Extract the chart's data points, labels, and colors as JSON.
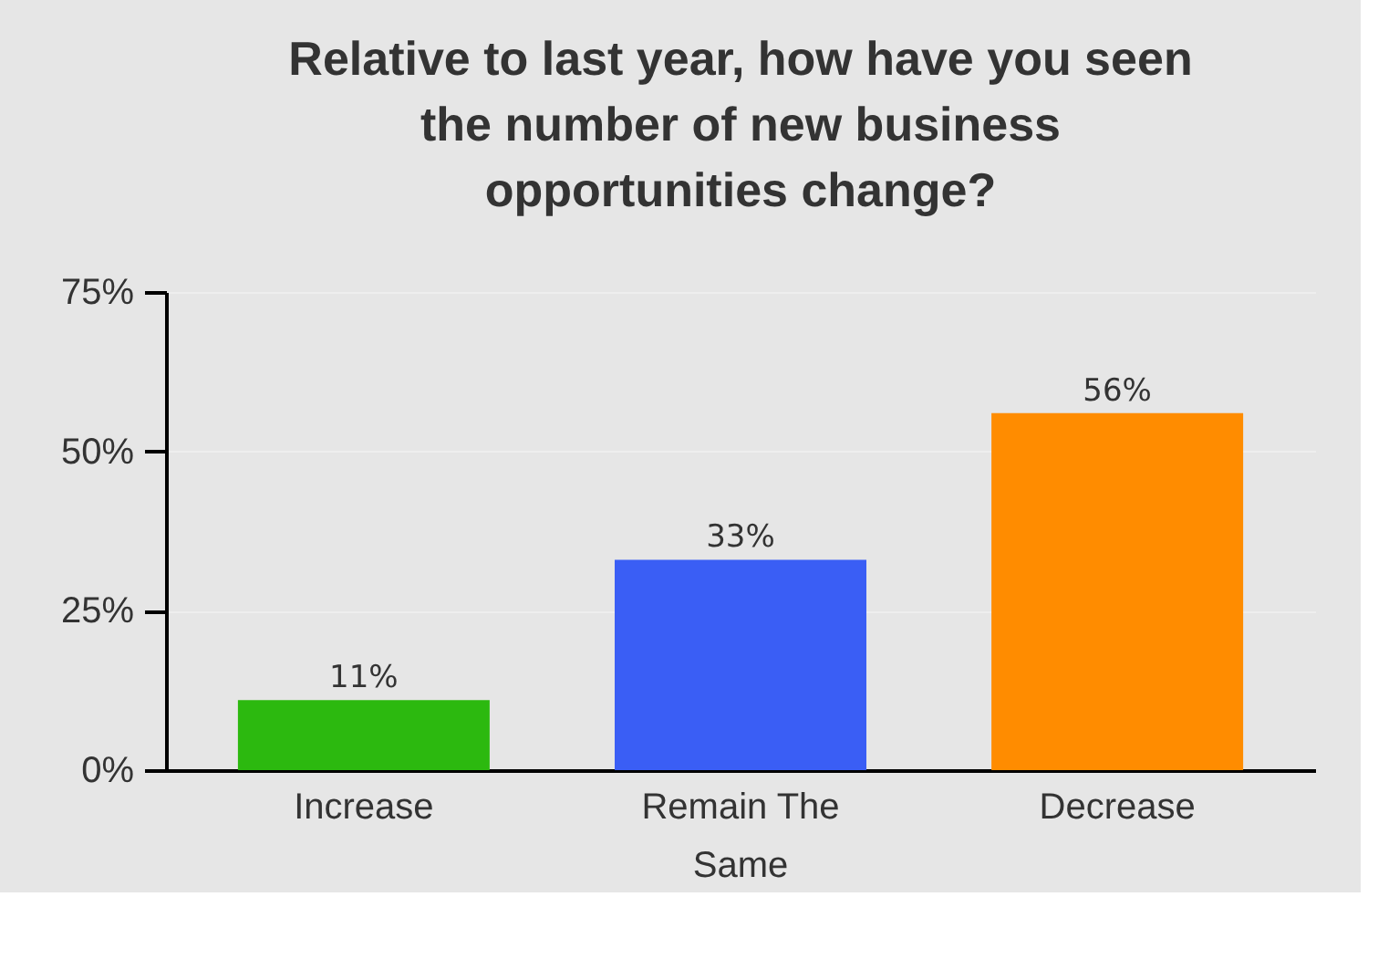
{
  "chart_data": {
    "type": "bar",
    "title": "Relative to last year, how have you seen\nthe number of new business\nopportunities change?",
    "categories": [
      "Increase",
      "Remain The Same",
      "Decrease"
    ],
    "values": [
      11,
      33,
      56
    ],
    "colors": [
      "#2cb90f",
      "#3a5ef5",
      "#ff8c00"
    ],
    "value_labels": [
      "11%",
      "33%",
      "56%"
    ],
    "ylim": [
      0,
      75
    ],
    "yticks": [
      {
        "value": 0,
        "label": "0%"
      },
      {
        "value": 25,
        "label": "25%"
      },
      {
        "value": 50,
        "label": "50%"
      },
      {
        "value": 75,
        "label": "75%"
      }
    ],
    "grid": "y"
  }
}
